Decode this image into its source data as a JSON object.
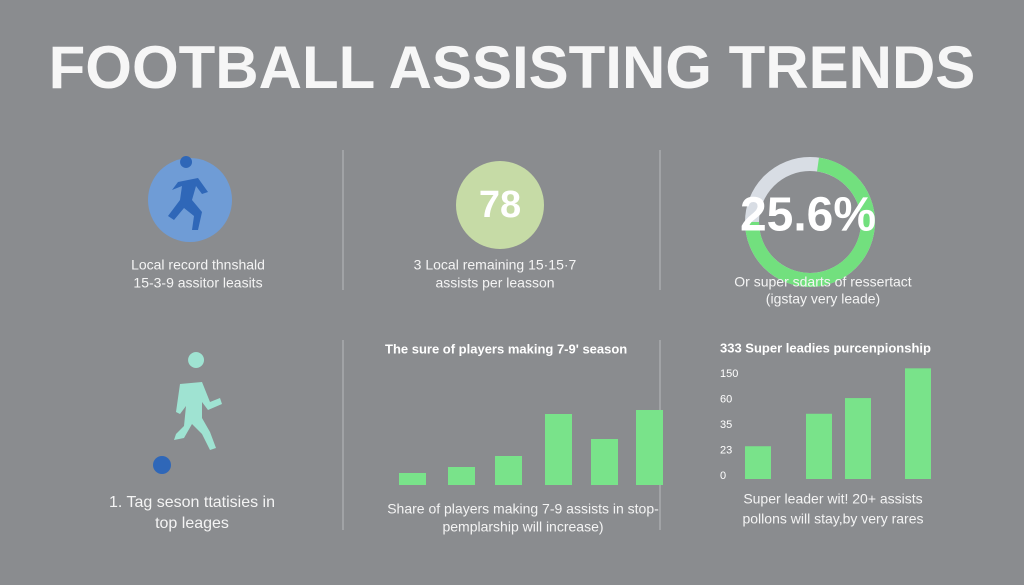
{
  "header": {
    "title": "FOOTBALL ASSISTING TRENDS"
  },
  "stats": [
    {
      "annotation": [
        "Local record thnshald",
        "15-3-9 assitor leasits"
      ]
    },
    {
      "value": 78,
      "annotation": [
        "3 Local remaining 15·15·7",
        "assists per leasson"
      ]
    },
    {
      "value": 25.6,
      "value_label": "25.6%",
      "annotation": [
        "Or super sdarts of ressertact",
        "(igstay very leade)"
      ]
    },
    {
      "annotation": [
        "1. Tag seson ttatisies in",
        "top leages"
      ]
    }
  ],
  "chart_data": [
    {
      "type": "bar",
      "title": "The sure of players making 7-9' season",
      "values": [
        12,
        18,
        29,
        71,
        46,
        75
      ],
      "color": "#79e38a",
      "annotation": [
        "Share of players making 7-9 assists in stop-",
        "pemplarship will increase)"
      ]
    },
    {
      "type": "bar",
      "title": "333 Super leadies purcenpionship",
      "yticks": [
        0,
        23,
        35,
        60,
        150
      ],
      "values": [
        25,
        46,
        65,
        170
      ],
      "color": "#79e38a",
      "annotation": [
        "Super leader wit! 20+ assists",
        "pollons will stay,by very rares"
      ]
    }
  ]
}
